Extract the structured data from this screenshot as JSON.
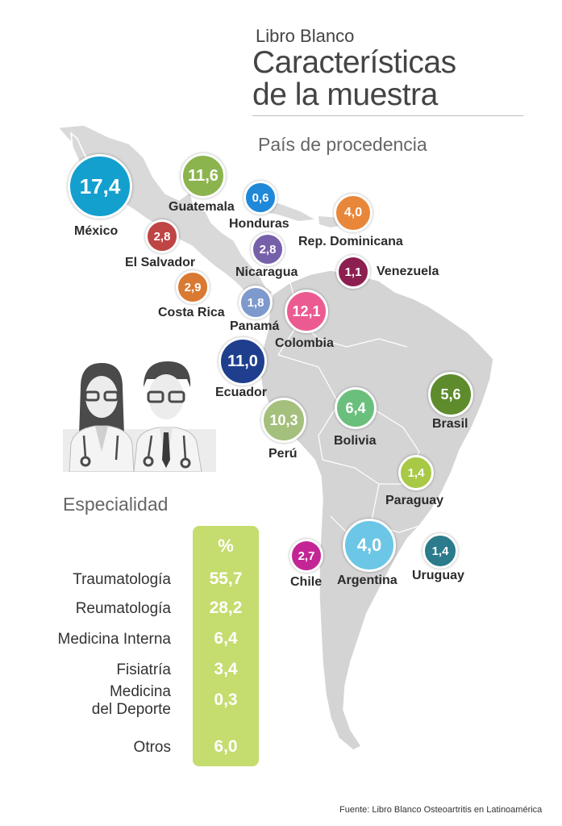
{
  "header": {
    "supertitle": "Libro Blanco",
    "title_line1": "Características",
    "title_line2": "de la muestra",
    "subtitle": "País de procedencia"
  },
  "countries": [
    {
      "name": "México",
      "value": "17,4",
      "color": "#13a0cf"
    },
    {
      "name": "Guatemala",
      "value": "11,6",
      "color": "#8cb44e"
    },
    {
      "name": "Honduras",
      "value": "0,6",
      "color": "#1f88d8"
    },
    {
      "name": "Rep. Dominicana",
      "value": "4,0",
      "color": "#e8873a"
    },
    {
      "name": "El Salvador",
      "value": "2,8",
      "color": "#bf4444"
    },
    {
      "name": "Nicaragua",
      "value": "2,8",
      "color": "#7660aa"
    },
    {
      "name": "Venezuela",
      "value": "1,1",
      "color": "#8d1f50"
    },
    {
      "name": "Costa Rica",
      "value": "2,9",
      "color": "#d97932"
    },
    {
      "name": "Panamá",
      "value": "1,8",
      "color": "#7e99cb"
    },
    {
      "name": "Colombia",
      "value": "12,1",
      "color": "#eb5b91"
    },
    {
      "name": "Ecuador",
      "value": "11,0",
      "color": "#1f3f8e"
    },
    {
      "name": "Perú",
      "value": "10,3",
      "color": "#a4c07c"
    },
    {
      "name": "Bolivia",
      "value": "6,4",
      "color": "#6bbf7d"
    },
    {
      "name": "Brasil",
      "value": "5,6",
      "color": "#5e8c2c"
    },
    {
      "name": "Paraguay",
      "value": "1,4",
      "color": "#a8c946"
    },
    {
      "name": "Chile",
      "value": "2,7",
      "color": "#c42595"
    },
    {
      "name": "Argentina",
      "value": "4,0",
      "color": "#6cc6e6"
    },
    {
      "name": "Uruguay",
      "value": "1,4",
      "color": "#2b7b8c"
    }
  ],
  "specialty": {
    "title": "Especialidad",
    "header": "%",
    "rows": [
      {
        "name": "Traumatología",
        "value": "55,7"
      },
      {
        "name": "Reumatología",
        "value": "28,2"
      },
      {
        "name": "Medicina Interna",
        "value": "6,4"
      },
      {
        "name": "Fisiatría",
        "value": "3,4"
      },
      {
        "name": "Medicina\ndel Deporte",
        "value": "0,3"
      },
      {
        "name": "Otros",
        "value": "6,0"
      }
    ],
    "panel_color": "#c5dc6e"
  },
  "source": "Fuente: Libro Blanco Osteoartritis en Latinoamérica"
}
